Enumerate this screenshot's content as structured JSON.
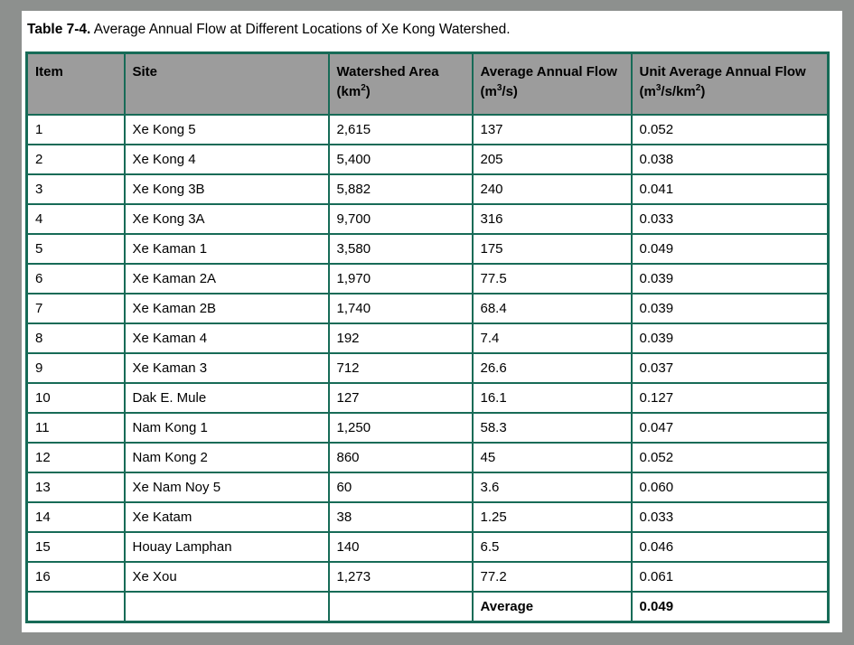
{
  "caption": {
    "label_bold": "Table 7-4.",
    "label_rest": " Average Annual Flow at Different Locations of Xe Kong Watershed."
  },
  "colors": {
    "border_green": "#176b57",
    "header_gray": "#9c9c9c",
    "frame_gray": "#8d908e",
    "page_white": "#ffffff",
    "text_black": "#000000"
  },
  "table": {
    "columns": [
      {
        "p0": "Item"
      },
      {
        "p0": "Site"
      },
      {
        "p0": "Watershed Area (km",
        "s0": "2",
        "p1": ")"
      },
      {
        "p0": "Average Annual Flow (m",
        "s0": "3",
        "p1": "/s)"
      },
      {
        "p0": "Unit Average Annual Flow (m",
        "s0": "3",
        "p1": "/s/km",
        "s1": "2",
        "p2": ")"
      }
    ],
    "rows": [
      {
        "item": "1",
        "site": "Xe Kong 5",
        "area": "2,615",
        "flow": "137",
        "unit": "0.052"
      },
      {
        "item": "2",
        "site": "Xe Kong 4",
        "area": "5,400",
        "flow": "205",
        "unit": "0.038"
      },
      {
        "item": "3",
        "site": "Xe Kong 3B",
        "area": "5,882",
        "flow": "240",
        "unit": "0.041"
      },
      {
        "item": "4",
        "site": "Xe Kong 3A",
        "area": "9,700",
        "flow": "316",
        "unit": "0.033"
      },
      {
        "item": "5",
        "site": "Xe Kaman 1",
        "area": "3,580",
        "flow": "175",
        "unit": "0.049"
      },
      {
        "item": "6",
        "site": "Xe Kaman 2A",
        "area": "1,970",
        "flow": "77.5",
        "unit": "0.039"
      },
      {
        "item": "7",
        "site": "Xe Kaman 2B",
        "area": "1,740",
        "flow": "68.4",
        "unit": "0.039"
      },
      {
        "item": "8",
        "site": "Xe Kaman 4",
        "area": "192",
        "flow": "7.4",
        "unit": "0.039"
      },
      {
        "item": "9",
        "site": "Xe Kaman 3",
        "area": "712",
        "flow": "26.6",
        "unit": "0.037"
      },
      {
        "item": "10",
        "site": "Dak E. Mule",
        "area": "127",
        "flow": "16.1",
        "unit": "0.127"
      },
      {
        "item": "11",
        "site": "Nam Kong 1",
        "area": "1,250",
        "flow": "58.3",
        "unit": "0.047"
      },
      {
        "item": "12",
        "site": "Nam Kong 2",
        "area": "860",
        "flow": "45",
        "unit": "0.052"
      },
      {
        "item": "13",
        "site": "Xe Nam Noy 5",
        "area": "60",
        "flow": "3.6",
        "unit": "0.060"
      },
      {
        "item": "14",
        "site": "Xe Katam",
        "area": "38",
        "flow": "1.25",
        "unit": "0.033"
      },
      {
        "item": "15",
        "site": "Houay Lamphan",
        "area": "140",
        "flow": "6.5",
        "unit": "0.046"
      },
      {
        "item": "16",
        "site": "Xe Xou",
        "area": "1,273",
        "flow": "77.2",
        "unit": "0.061"
      }
    ],
    "footer": {
      "item": "",
      "site": "",
      "area": "",
      "average_label": "Average",
      "average_value": "0.049"
    }
  }
}
